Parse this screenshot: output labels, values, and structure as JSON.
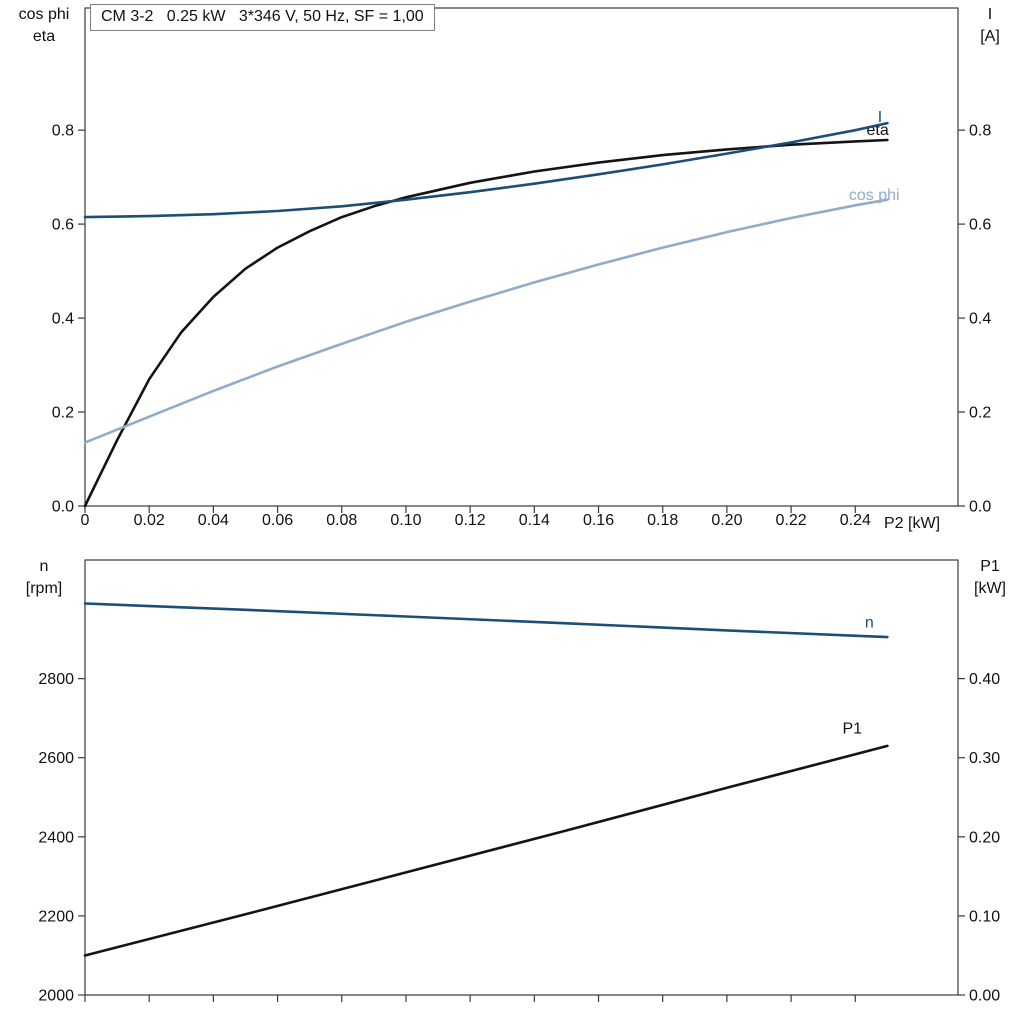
{
  "title_box": {
    "text": "CM 3-2   0.25 kW   3*346 V, 50 Hz, SF = 1,00"
  },
  "colors": {
    "dark_blue": "#1c4e78",
    "light_blue": "#8faccb",
    "black": "#141414",
    "axis": "#3a3a3a"
  },
  "chart_data": [
    {
      "type": "line",
      "id": "top",
      "title": "CM 3-2   0.25 kW   3*346 V, 50 Hz, SF = 1,00",
      "xlabel": "P2 [kW]",
      "ylabel_left_lines": [
        "cos phi",
        "eta"
      ],
      "ylabel_right_lines": [
        "I",
        "[A]"
      ],
      "xlim": [
        0,
        0.272
      ],
      "ylim_left": [
        0,
        1.06
      ],
      "ylim_right": [
        0,
        1.06
      ],
      "x_ticks": [
        0,
        0.02,
        0.04,
        0.06,
        0.08,
        0.1,
        0.12,
        0.14,
        0.16,
        0.18,
        0.2,
        0.22,
        0.24
      ],
      "x_tick_labels": [
        "0",
        "0.02",
        "0.04",
        "0.06",
        "0.08",
        "0.10",
        "0.12",
        "0.14",
        "0.16",
        "0.18",
        "0.20",
        "0.22",
        "0.24"
      ],
      "y_ticks_left": [
        0.0,
        0.2,
        0.4,
        0.6,
        0.8
      ],
      "y_tick_labels_left": [
        "0.0",
        "0.2",
        "0.4",
        "0.6",
        "0.8"
      ],
      "y_ticks_right": [
        0.0,
        0.2,
        0.4,
        0.6,
        0.8
      ],
      "y_tick_labels_right": [
        "0.0",
        "0.2",
        "0.4",
        "0.6",
        "0.8"
      ],
      "grid": false,
      "legend": "inline-labels",
      "series": [
        {
          "name": "eta",
          "axis": "left",
          "color": "#141414",
          "label_x": 0.2435,
          "label_y": 0.8,
          "x": [
            0,
            0.005,
            0.01,
            0.02,
            0.03,
            0.04,
            0.05,
            0.06,
            0.07,
            0.08,
            0.09,
            0.1,
            0.12,
            0.14,
            0.16,
            0.18,
            0.2,
            0.22,
            0.24,
            0.25
          ],
          "y": [
            0,
            0.07,
            0.14,
            0.27,
            0.37,
            0.445,
            0.505,
            0.55,
            0.585,
            0.615,
            0.638,
            0.657,
            0.688,
            0.712,
            0.731,
            0.747,
            0.759,
            0.769,
            0.776,
            0.779
          ]
        },
        {
          "name": "I",
          "axis": "right",
          "color": "#1c4e78",
          "label_x": 0.247,
          "label_y": 0.828,
          "x": [
            0,
            0.02,
            0.04,
            0.06,
            0.08,
            0.1,
            0.12,
            0.14,
            0.16,
            0.18,
            0.2,
            0.22,
            0.24,
            0.25
          ],
          "y": [
            0.615,
            0.617,
            0.621,
            0.628,
            0.638,
            0.652,
            0.668,
            0.686,
            0.706,
            0.727,
            0.75,
            0.774,
            0.8,
            0.815
          ]
        },
        {
          "name": "cos phi",
          "axis": "left",
          "color": "#8faccb",
          "label_x": 0.238,
          "label_y": 0.662,
          "x": [
            0,
            0.02,
            0.04,
            0.06,
            0.08,
            0.1,
            0.12,
            0.14,
            0.16,
            0.18,
            0.2,
            0.22,
            0.24,
            0.25
          ],
          "y": [
            0.135,
            0.19,
            0.245,
            0.297,
            0.345,
            0.392,
            0.435,
            0.476,
            0.514,
            0.55,
            0.583,
            0.613,
            0.64,
            0.652
          ]
        }
      ]
    },
    {
      "type": "line",
      "id": "bottom",
      "title": "",
      "xlabel": "",
      "ylabel_left_lines": [
        "n",
        "[rpm]"
      ],
      "ylabel_right_lines": [
        "P1",
        "[kW]"
      ],
      "xlim": [
        0,
        0.272
      ],
      "ylim_left": [
        2000,
        3100
      ],
      "ylim_right": [
        0,
        0.55
      ],
      "x_ticks": [
        0,
        0.02,
        0.04,
        0.06,
        0.08,
        0.1,
        0.12,
        0.14,
        0.16,
        0.18,
        0.2,
        0.22,
        0.24
      ],
      "x_tick_labels": [],
      "y_ticks_left": [
        2000,
        2200,
        2400,
        2600,
        2800
      ],
      "y_tick_labels_left": [
        "2000",
        "2200",
        "2400",
        "2600",
        "2800"
      ],
      "y_ticks_right": [
        0.0,
        0.1,
        0.2,
        0.3,
        0.4
      ],
      "y_tick_labels_right": [
        "0.00",
        "0.10",
        "0.20",
        "0.30",
        "0.40"
      ],
      "grid": false,
      "legend": "inline-labels",
      "series": [
        {
          "name": "n",
          "axis": "left",
          "color": "#1c4e78",
          "label_x": 0.243,
          "label_y": 2942,
          "x": [
            0,
            0.05,
            0.1,
            0.15,
            0.2,
            0.25
          ],
          "y": [
            2990,
            2974,
            2957,
            2940,
            2922,
            2905
          ]
        },
        {
          "name": "P1",
          "axis": "right",
          "color": "#141414",
          "label_x": 0.236,
          "label_y": 0.337,
          "x": [
            0,
            0.05,
            0.1,
            0.15,
            0.2,
            0.25
          ],
          "y": [
            0.05,
            0.102,
            0.155,
            0.208,
            0.262,
            0.315
          ]
        }
      ]
    }
  ]
}
